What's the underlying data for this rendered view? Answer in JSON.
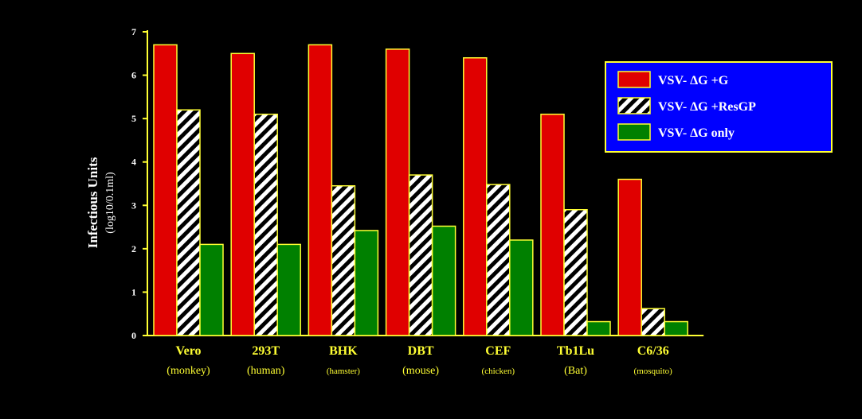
{
  "chart_data": {
    "type": "bar",
    "title": "",
    "ylabel": "Infectious Units",
    "ylabel_sub": "(log10/0.1ml)",
    "xlabel": "",
    "ylim": [
      0,
      7
    ],
    "yticks": [
      0,
      1,
      2,
      3,
      4,
      5,
      6,
      7
    ],
    "grid": false,
    "legend_position": "top-right",
    "categories": [
      "Vero",
      "293T",
      "BHK",
      "DBT",
      "CEF",
      "Tb1Lu",
      "C6/36"
    ],
    "category_sublabels": [
      "(monkey)",
      "(human)",
      "(hamster)",
      "(mouse)",
      "(chicken)",
      "(Bat)",
      "(mosquito)"
    ],
    "series": [
      {
        "name": "VSV- ΔG +G",
        "values": [
          6.7,
          6.5,
          6.7,
          6.6,
          6.4,
          5.1,
          3.6
        ],
        "color": "#e00000",
        "pattern": "solid"
      },
      {
        "name": "VSV- ΔG +ResGP",
        "values": [
          5.2,
          5.1,
          3.45,
          3.7,
          3.48,
          2.9,
          0.62
        ],
        "color": "#ffffff",
        "pattern": "hatch"
      },
      {
        "name": "VSV- ΔG only",
        "values": [
          2.1,
          2.1,
          2.42,
          2.52,
          2.2,
          0.32,
          0.32
        ],
        "color": "#008000",
        "pattern": "solid"
      }
    ],
    "colors": {
      "background": "#000000",
      "axis": "#ffff33",
      "bar_outline": "#ffff33",
      "legend_bg": "#0000ff",
      "legend_border": "#ffff33"
    }
  }
}
